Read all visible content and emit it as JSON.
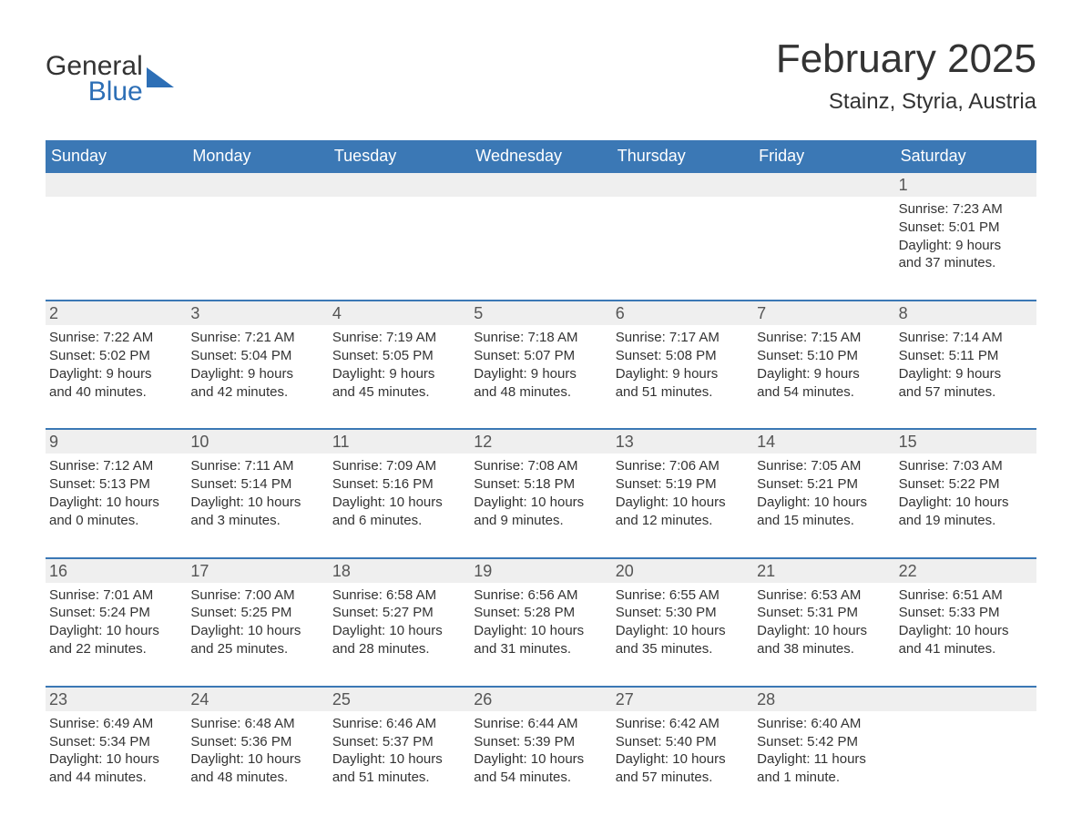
{
  "logo": {
    "word1": "General",
    "word2": "Blue",
    "triangle_color": "#2d6fb6"
  },
  "title": "February 2025",
  "location": "Stainz, Styria, Austria",
  "colors": {
    "header_bg": "#3b78b5",
    "header_text": "#ffffff",
    "daynum_bg": "#efefef",
    "rule": "#3b78b5",
    "body_text": "#333333"
  },
  "day_names": [
    "Sunday",
    "Monday",
    "Tuesday",
    "Wednesday",
    "Thursday",
    "Friday",
    "Saturday"
  ],
  "weeks": [
    [
      null,
      null,
      null,
      null,
      null,
      null,
      {
        "n": "1",
        "sunrise": "Sunrise: 7:23 AM",
        "sunset": "Sunset: 5:01 PM",
        "d1": "Daylight: 9 hours",
        "d2": "and 37 minutes."
      }
    ],
    [
      {
        "n": "2",
        "sunrise": "Sunrise: 7:22 AM",
        "sunset": "Sunset: 5:02 PM",
        "d1": "Daylight: 9 hours",
        "d2": "and 40 minutes."
      },
      {
        "n": "3",
        "sunrise": "Sunrise: 7:21 AM",
        "sunset": "Sunset: 5:04 PM",
        "d1": "Daylight: 9 hours",
        "d2": "and 42 minutes."
      },
      {
        "n": "4",
        "sunrise": "Sunrise: 7:19 AM",
        "sunset": "Sunset: 5:05 PM",
        "d1": "Daylight: 9 hours",
        "d2": "and 45 minutes."
      },
      {
        "n": "5",
        "sunrise": "Sunrise: 7:18 AM",
        "sunset": "Sunset: 5:07 PM",
        "d1": "Daylight: 9 hours",
        "d2": "and 48 minutes."
      },
      {
        "n": "6",
        "sunrise": "Sunrise: 7:17 AM",
        "sunset": "Sunset: 5:08 PM",
        "d1": "Daylight: 9 hours",
        "d2": "and 51 minutes."
      },
      {
        "n": "7",
        "sunrise": "Sunrise: 7:15 AM",
        "sunset": "Sunset: 5:10 PM",
        "d1": "Daylight: 9 hours",
        "d2": "and 54 minutes."
      },
      {
        "n": "8",
        "sunrise": "Sunrise: 7:14 AM",
        "sunset": "Sunset: 5:11 PM",
        "d1": "Daylight: 9 hours",
        "d2": "and 57 minutes."
      }
    ],
    [
      {
        "n": "9",
        "sunrise": "Sunrise: 7:12 AM",
        "sunset": "Sunset: 5:13 PM",
        "d1": "Daylight: 10 hours",
        "d2": "and 0 minutes."
      },
      {
        "n": "10",
        "sunrise": "Sunrise: 7:11 AM",
        "sunset": "Sunset: 5:14 PM",
        "d1": "Daylight: 10 hours",
        "d2": "and 3 minutes."
      },
      {
        "n": "11",
        "sunrise": "Sunrise: 7:09 AM",
        "sunset": "Sunset: 5:16 PM",
        "d1": "Daylight: 10 hours",
        "d2": "and 6 minutes."
      },
      {
        "n": "12",
        "sunrise": "Sunrise: 7:08 AM",
        "sunset": "Sunset: 5:18 PM",
        "d1": "Daylight: 10 hours",
        "d2": "and 9 minutes."
      },
      {
        "n": "13",
        "sunrise": "Sunrise: 7:06 AM",
        "sunset": "Sunset: 5:19 PM",
        "d1": "Daylight: 10 hours",
        "d2": "and 12 minutes."
      },
      {
        "n": "14",
        "sunrise": "Sunrise: 7:05 AM",
        "sunset": "Sunset: 5:21 PM",
        "d1": "Daylight: 10 hours",
        "d2": "and 15 minutes."
      },
      {
        "n": "15",
        "sunrise": "Sunrise: 7:03 AM",
        "sunset": "Sunset: 5:22 PM",
        "d1": "Daylight: 10 hours",
        "d2": "and 19 minutes."
      }
    ],
    [
      {
        "n": "16",
        "sunrise": "Sunrise: 7:01 AM",
        "sunset": "Sunset: 5:24 PM",
        "d1": "Daylight: 10 hours",
        "d2": "and 22 minutes."
      },
      {
        "n": "17",
        "sunrise": "Sunrise: 7:00 AM",
        "sunset": "Sunset: 5:25 PM",
        "d1": "Daylight: 10 hours",
        "d2": "and 25 minutes."
      },
      {
        "n": "18",
        "sunrise": "Sunrise: 6:58 AM",
        "sunset": "Sunset: 5:27 PM",
        "d1": "Daylight: 10 hours",
        "d2": "and 28 minutes."
      },
      {
        "n": "19",
        "sunrise": "Sunrise: 6:56 AM",
        "sunset": "Sunset: 5:28 PM",
        "d1": "Daylight: 10 hours",
        "d2": "and 31 minutes."
      },
      {
        "n": "20",
        "sunrise": "Sunrise: 6:55 AM",
        "sunset": "Sunset: 5:30 PM",
        "d1": "Daylight: 10 hours",
        "d2": "and 35 minutes."
      },
      {
        "n": "21",
        "sunrise": "Sunrise: 6:53 AM",
        "sunset": "Sunset: 5:31 PM",
        "d1": "Daylight: 10 hours",
        "d2": "and 38 minutes."
      },
      {
        "n": "22",
        "sunrise": "Sunrise: 6:51 AM",
        "sunset": "Sunset: 5:33 PM",
        "d1": "Daylight: 10 hours",
        "d2": "and 41 minutes."
      }
    ],
    [
      {
        "n": "23",
        "sunrise": "Sunrise: 6:49 AM",
        "sunset": "Sunset: 5:34 PM",
        "d1": "Daylight: 10 hours",
        "d2": "and 44 minutes."
      },
      {
        "n": "24",
        "sunrise": "Sunrise: 6:48 AM",
        "sunset": "Sunset: 5:36 PM",
        "d1": "Daylight: 10 hours",
        "d2": "and 48 minutes."
      },
      {
        "n": "25",
        "sunrise": "Sunrise: 6:46 AM",
        "sunset": "Sunset: 5:37 PM",
        "d1": "Daylight: 10 hours",
        "d2": "and 51 minutes."
      },
      {
        "n": "26",
        "sunrise": "Sunrise: 6:44 AM",
        "sunset": "Sunset: 5:39 PM",
        "d1": "Daylight: 10 hours",
        "d2": "and 54 minutes."
      },
      {
        "n": "27",
        "sunrise": "Sunrise: 6:42 AM",
        "sunset": "Sunset: 5:40 PM",
        "d1": "Daylight: 10 hours",
        "d2": "and 57 minutes."
      },
      {
        "n": "28",
        "sunrise": "Sunrise: 6:40 AM",
        "sunset": "Sunset: 5:42 PM",
        "d1": "Daylight: 11 hours",
        "d2": "and 1 minute."
      },
      null
    ]
  ]
}
